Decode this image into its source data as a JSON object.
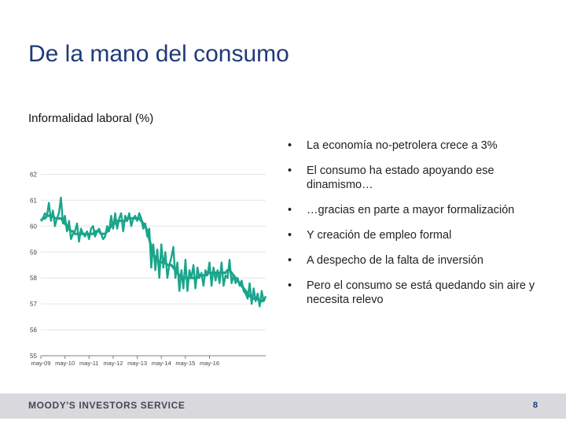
{
  "slide": {
    "title": "De la mano del consumo",
    "bullets": [
      "La economía no-petrolera crece a 3%",
      "El consumo ha estado apoyando ese dinamismo…",
      "…gracias en parte a mayor formalización",
      "Y creación de empleo formal",
      "A despecho de la falta de inversión",
      "Pero el consumo se está quedando sin aire y necesita relevo"
    ],
    "bullet_symbol": "•"
  },
  "footer": {
    "logo": "MOODY'S INVESTORS SERVICE",
    "page_number": "8",
    "background": "#d9d9dd",
    "logo_color": "#44475a"
  },
  "chart_data": {
    "type": "line",
    "title": "Informalidad laboral (%)",
    "xlabel": "",
    "ylabel": "",
    "ylim": [
      55,
      62.5
    ],
    "yticks": [
      55,
      56,
      57,
      58,
      59,
      60,
      61,
      62
    ],
    "x_ticks": [
      "may-09",
      "may-10",
      "may-11",
      "may-12",
      "may-13",
      "may-14",
      "may-15",
      "may-16"
    ],
    "x_start_index": 0,
    "color": "#1aa58b",
    "grid": true,
    "series": [
      {
        "name": "",
        "style": "monthly",
        "values": [
          60.2,
          60.3,
          60.5,
          60.4,
          60.9,
          60.2,
          60.6,
          60.0,
          60.3,
          60.5,
          61.1,
          60.1,
          60.4,
          59.8,
          60.2,
          59.5,
          59.7,
          59.8,
          60.1,
          59.4,
          59.9,
          59.7,
          59.6,
          59.8,
          59.5,
          59.9,
          60.0,
          59.6,
          59.8,
          59.9,
          59.7,
          59.5,
          59.6,
          60.0,
          59.8,
          60.4,
          59.9,
          60.5,
          59.9,
          60.3,
          60.5,
          59.8,
          60.4,
          60.2,
          60.5,
          60.0,
          60.3,
          60.4,
          60.2,
          60.5,
          60.3,
          59.9,
          60.1,
          59.6,
          59.9,
          58.4,
          59.3,
          58.3,
          59.1,
          58.0,
          59.3,
          58.4,
          59.0,
          58.0,
          58.5,
          58.8,
          59.2,
          58.0,
          58.6,
          57.5,
          58.3,
          57.6,
          58.7,
          57.5,
          58.3,
          58.0,
          58.5,
          57.6,
          58.4,
          58.0,
          58.2,
          57.7,
          58.3,
          58.1,
          58.6,
          57.7,
          58.4,
          57.9,
          58.3,
          57.8,
          58.6,
          57.7,
          58.1,
          58.0,
          58.7,
          57.8,
          58.1,
          57.8,
          58.0,
          57.7,
          57.9,
          57.5,
          57.4,
          57.2,
          57.8,
          57.0,
          57.6,
          57.1,
          57.4,
          56.9,
          57.5,
          57.1,
          57.3
        ]
      },
      {
        "name": "",
        "style": "trend",
        "values": [
          60.2,
          60.3,
          60.3,
          60.4,
          60.4,
          60.4,
          60.4,
          60.3,
          60.3,
          60.3,
          60.3,
          60.2,
          60.1,
          60.0,
          59.9,
          59.8,
          59.8,
          59.7,
          59.7,
          59.7,
          59.7,
          59.7,
          59.7,
          59.7,
          59.7,
          59.7,
          59.7,
          59.8,
          59.8,
          59.8,
          59.7,
          59.7,
          59.7,
          59.8,
          59.9,
          60.0,
          60.1,
          60.1,
          60.2,
          60.2,
          60.2,
          60.2,
          60.2,
          60.3,
          60.3,
          60.3,
          60.3,
          60.3,
          60.3,
          60.3,
          60.2,
          60.1,
          60.0,
          59.8,
          59.5,
          59.2,
          58.9,
          58.8,
          58.7,
          58.6,
          58.6,
          58.6,
          58.6,
          58.5,
          58.5,
          58.5,
          58.4,
          58.3,
          58.2,
          58.1,
          58.0,
          58.0,
          58.0,
          58.0,
          58.0,
          58.0,
          58.0,
          58.0,
          58.0,
          58.1,
          58.1,
          58.1,
          58.1,
          58.2,
          58.2,
          58.2,
          58.2,
          58.2,
          58.2,
          58.2,
          58.2,
          58.2,
          58.2,
          58.3,
          58.3,
          58.2,
          58.1,
          58.0,
          57.9,
          57.8,
          57.7,
          57.6,
          57.5,
          57.4,
          57.3,
          57.3,
          57.2,
          57.2,
          57.2,
          57.1,
          57.1,
          57.2,
          57.2
        ]
      }
    ]
  }
}
